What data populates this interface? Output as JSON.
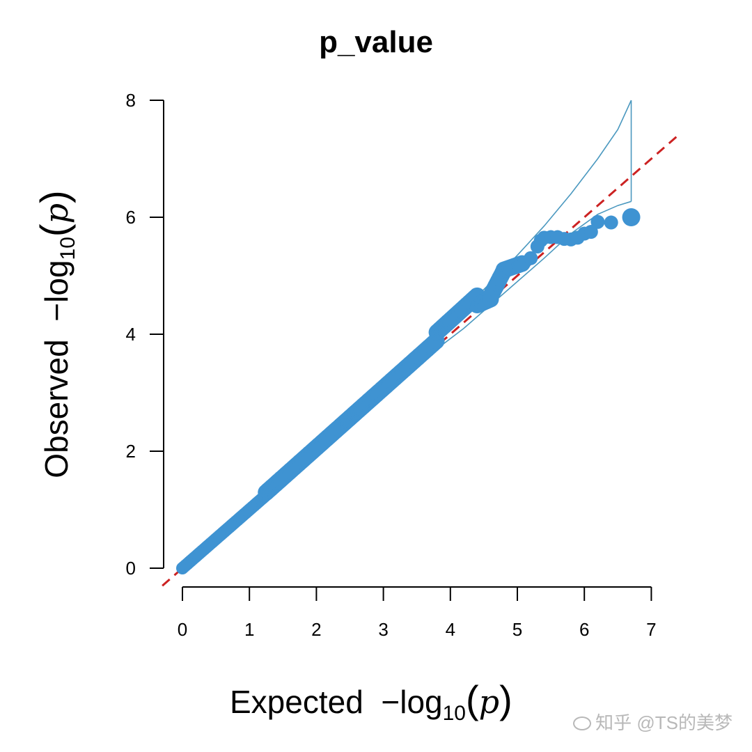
{
  "chart_data": {
    "type": "scatter",
    "title": "p_value",
    "xlabel_prefix": "Expected",
    "ylabel_prefix": "Observed",
    "label_math": {
      "minus": "−",
      "log": "log",
      "base": "10",
      "open": "(",
      "p": "p",
      "close": ")"
    },
    "xlim": [
      0,
      7
    ],
    "ylim": [
      0,
      8
    ],
    "x_ticks": [
      "0",
      "1",
      "2",
      "3",
      "4",
      "5",
      "6",
      "7"
    ],
    "y_ticks": [
      "0",
      "2",
      "4",
      "6",
      "8"
    ],
    "reference_line": {
      "slope": 1,
      "intercept": 0,
      "color": "#cc2222",
      "style": "dashed"
    },
    "confidence_band": {
      "color": "#4a98bf",
      "upper": [
        [
          3.8,
          3.95
        ],
        [
          4.2,
          4.42
        ],
        [
          4.6,
          4.88
        ],
        [
          5.0,
          5.35
        ],
        [
          5.4,
          5.85
        ],
        [
          5.8,
          6.4
        ],
        [
          6.2,
          7.0
        ],
        [
          6.5,
          7.5
        ],
        [
          6.7,
          8.0
        ]
      ],
      "lower": [
        [
          3.8,
          3.75
        ],
        [
          4.2,
          4.1
        ],
        [
          4.6,
          4.5
        ],
        [
          5.0,
          4.9
        ],
        [
          5.4,
          5.3
        ],
        [
          5.8,
          5.72
        ],
        [
          6.2,
          6.05
        ],
        [
          6.5,
          6.2
        ],
        [
          6.7,
          6.27
        ]
      ]
    },
    "point_color": "#3f93d2",
    "points_sparse": [
      [
        5.1,
        5.22
      ],
      [
        5.2,
        5.3
      ],
      [
        5.3,
        5.5
      ],
      [
        5.35,
        5.6
      ],
      [
        5.4,
        5.65
      ],
      [
        5.5,
        5.66
      ],
      [
        5.6,
        5.66
      ],
      [
        5.7,
        5.63
      ],
      [
        5.8,
        5.62
      ],
      [
        5.9,
        5.65
      ],
      [
        6.0,
        5.72
      ],
      [
        6.1,
        5.75
      ],
      [
        6.2,
        5.92
      ],
      [
        6.4,
        5.91
      ],
      [
        6.7,
        6.0
      ]
    ]
  },
  "watermark": "知乎 @TS的美梦"
}
